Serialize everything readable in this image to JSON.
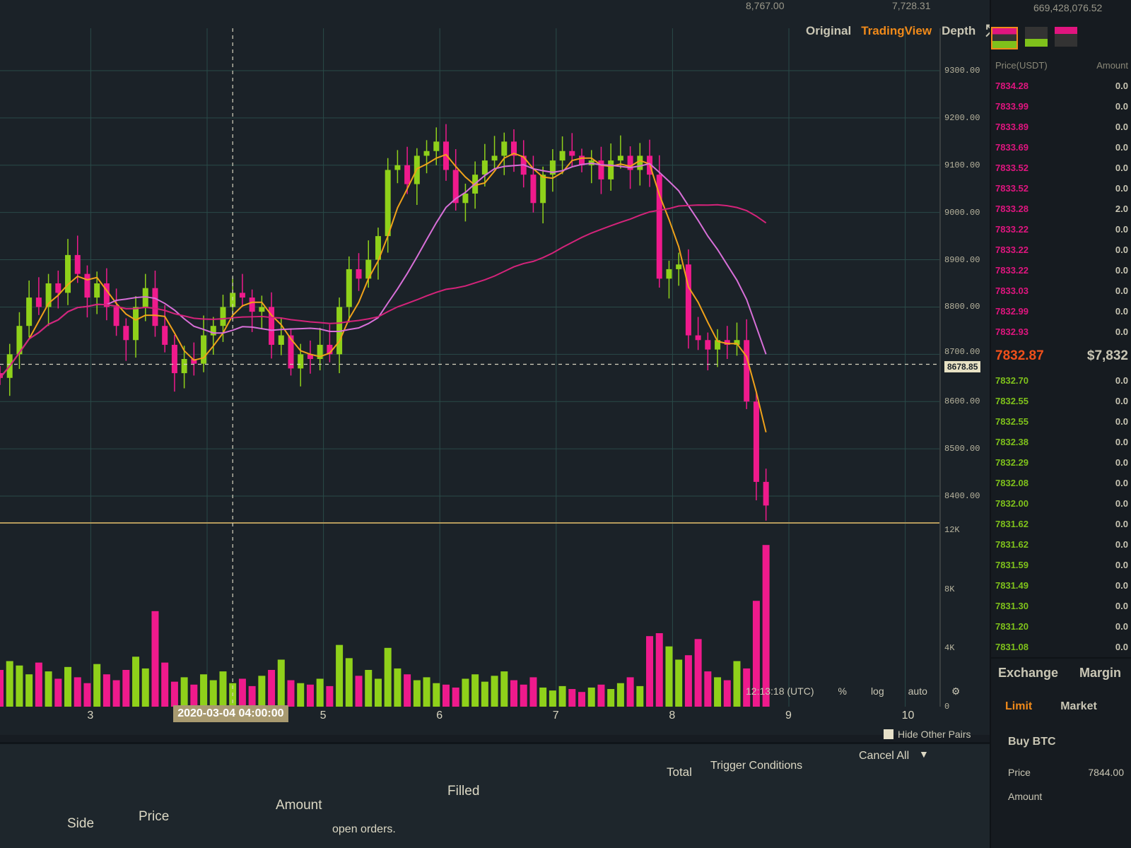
{
  "top_stats": {
    "left": "8,767.00",
    "right": "7,728.31",
    "far": "669,428,076.52"
  },
  "toolbar": {
    "original": "Original",
    "tradingview": "TradingView",
    "depth": "Depth",
    "fullscreen_icon": "expand-icon"
  },
  "colors": {
    "up": "#8fd11a",
    "down": "#ef1a8c",
    "ma_fast": "#f0a21a",
    "ma_mid": "#d86fd8",
    "ma_slow": "#d4237a",
    "accent": "#f08a1a",
    "background": "#1b2228",
    "grid": "#2a4a48"
  },
  "chart_data": {
    "type": "candlestick",
    "interval": "2h",
    "x_ticks": [
      {
        "day": 3,
        "label": "3"
      },
      {
        "day": 5,
        "label": "5"
      },
      {
        "day": 6,
        "label": "6"
      },
      {
        "day": 7,
        "label": "7"
      },
      {
        "day": 8,
        "label": "8"
      },
      {
        "day": 9,
        "label": "9"
      },
      {
        "day": 10,
        "label": "10"
      }
    ],
    "xlim_days": [
      2.22,
      10.3
    ],
    "first_candle_day": 2.22,
    "first_open": 8660,
    "closes": [
      8650,
      8700,
      8760,
      8820,
      8800,
      8850,
      8830,
      8910,
      8870,
      8820,
      8850,
      8800,
      8760,
      8730,
      8800,
      8840,
      8760,
      8720,
      8660,
      8690,
      8680,
      8740,
      8760,
      8800,
      8830,
      8820,
      8790,
      8800,
      8720,
      8740,
      8670,
      8700,
      8690,
      8720,
      8700,
      8800,
      8880,
      8860,
      8900,
      8950,
      9090,
      9100,
      9060,
      9120,
      9130,
      9150,
      9090,
      9020,
      9040,
      9080,
      9110,
      9120,
      9150,
      9120,
      9080,
      9020,
      9080,
      9110,
      9130,
      9120,
      9100,
      9110,
      9070,
      9110,
      9120,
      9090,
      9120,
      9080,
      8860,
      8880,
      8890,
      8740,
      8730,
      8710,
      8730,
      8720,
      8730,
      8600,
      8430,
      8380
    ],
    "volumes_k": [
      2.5,
      3.1,
      2.8,
      2.2,
      3.0,
      2.4,
      1.9,
      2.7,
      2.0,
      1.6,
      2.9,
      2.2,
      1.8,
      2.5,
      3.4,
      2.6,
      6.5,
      3.0,
      1.7,
      2.0,
      1.5,
      2.2,
      1.8,
      2.4,
      1.6,
      1.9,
      1.4,
      2.1,
      2.5,
      3.2,
      1.8,
      1.6,
      1.5,
      1.9,
      1.4,
      4.2,
      3.3,
      2.1,
      2.5,
      1.9,
      4.0,
      2.6,
      2.2,
      1.8,
      2.0,
      1.6,
      1.5,
      1.3,
      1.9,
      2.2,
      1.7,
      2.1,
      2.4,
      1.8,
      1.5,
      2.0,
      1.3,
      1.1,
      1.4,
      1.2,
      1.0,
      1.3,
      1.5,
      1.2,
      1.6,
      2.0,
      1.4,
      4.8,
      5.0,
      4.1,
      3.2,
      3.5,
      4.6,
      2.4,
      2.0,
      1.8,
      3.1,
      2.6,
      7.2,
      11.0
    ],
    "price_axis": {
      "ticks": [
        9300,
        9200,
        9100,
        9000,
        8900,
        8800,
        8700,
        8600,
        8500,
        8400
      ],
      "labels": [
        "9300.00",
        "9200.00",
        "9100.00",
        "9000.00",
        "8900.00",
        "8800.00",
        "8700.00",
        "8600.00",
        "8500.00",
        "8400.00"
      ],
      "ylim": [
        8385,
        9315
      ]
    },
    "volume_axis": {
      "ticks": [
        12,
        8,
        4,
        0
      ],
      "labels": [
        "12K",
        "8K",
        "4K",
        "0"
      ],
      "ylim": [
        0,
        12.5
      ]
    },
    "current_price": "8678.85",
    "crosshair_label": "2020-03-04 04:00:00",
    "grid": true
  },
  "footer": {
    "time": "12:13:18 (UTC)",
    "percent": "%",
    "log": "log",
    "auto": "auto"
  },
  "orders": {
    "hide_other_pairs": "Hide Other Pairs",
    "cancel_all": "Cancel All",
    "headers": [
      "Side",
      "Price",
      "Amount",
      "Filled",
      "Total",
      "Trigger Conditions"
    ],
    "empty": "open orders."
  },
  "orderbook": {
    "header_price": "Price(USDT)",
    "header_amount": "Amount",
    "asks": [
      "7834.28",
      "7833.99",
      "7833.89",
      "7833.69",
      "7833.52",
      "7833.52",
      "7833.28",
      "7833.22",
      "7833.22",
      "7833.22",
      "7833.03",
      "7832.99",
      "7832.93"
    ],
    "ask_amounts": [
      "0.0",
      "0.0",
      "0.0",
      "0.0",
      "0.0",
      "0.0",
      "2.0",
      "0.0",
      "0.0",
      "0.0",
      "0.0",
      "0.0",
      "0.0"
    ],
    "mid_price": "7832.87",
    "mid_extra": "$7,832",
    "bids": [
      "7832.70",
      "7832.55",
      "7832.55",
      "7832.38",
      "7832.29",
      "7832.08",
      "7832.00",
      "7831.62",
      "7831.62",
      "7831.59",
      "7831.49",
      "7831.30",
      "7831.20",
      "7831.08"
    ],
    "bid_amounts": [
      "0.0",
      "0.0",
      "0.0",
      "0.0",
      "0.0",
      "0.0",
      "0.0",
      "0.0",
      "0.0",
      "0.0",
      "0.0",
      "0.0",
      "0.0",
      "0.0"
    ]
  },
  "trade": {
    "exchange": "Exchange",
    "margin": "Margin",
    "limit": "Limit",
    "market": "Market",
    "buy": "Buy BTC",
    "price_label": "Price",
    "price_value": "7844.00",
    "amount_label": "Amount"
  }
}
